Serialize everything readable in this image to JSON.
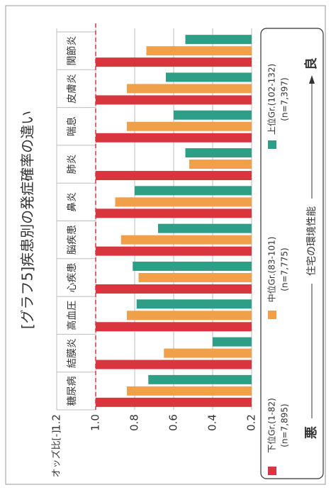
{
  "chart_data": {
    "type": "bar",
    "title": "[グラフ5]疾患別の発症確率の違い",
    "x_label": "オッズ比[-]",
    "categories": [
      "糖尿病",
      "結膜炎",
      "高血圧",
      "心疾患",
      "脳疾患",
      "鼻炎",
      "肺炎",
      "喘息",
      "皮膚炎",
      "関節炎"
    ],
    "series": [
      {
        "name": "下位Gr.(1-82)",
        "sample": "(n=7,895)",
        "color": "#d9353f",
        "values": [
          1.0,
          1.0,
          1.0,
          1.0,
          1.0,
          1.0,
          1.0,
          1.0,
          1.0,
          1.0
        ]
      },
      {
        "name": "中位Gr.(83-101)",
        "sample": "(n=7,775)",
        "color": "#f0a048",
        "values": [
          0.84,
          0.65,
          0.84,
          0.78,
          0.87,
          0.9,
          0.52,
          0.84,
          0.84,
          0.74
        ]
      },
      {
        "name": "上位Gr.(102-132)",
        "sample": "(n=7,397)",
        "color": "#2e9e86",
        "values": [
          0.73,
          0.4,
          0.79,
          0.81,
          0.68,
          0.8,
          0.54,
          0.6,
          0.64,
          0.54
        ]
      }
    ],
    "xlim": [
      1.2,
      0.2
    ],
    "xticks": [
      1.2,
      {
        "value": 1,
        "label": "1.0"
      },
      0.8,
      0.6,
      0.4,
      0.2
    ],
    "reference_line": 1,
    "grid": true,
    "scale_note": {
      "bad": "悪",
      "label": "住宅の環境性能",
      "good": "良"
    }
  }
}
